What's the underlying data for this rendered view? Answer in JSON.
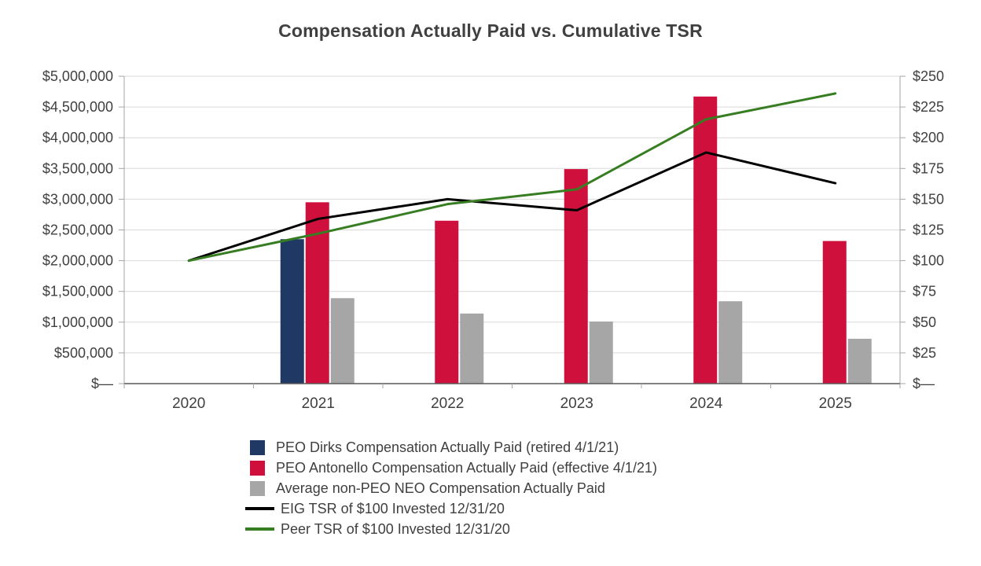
{
  "title": "Compensation Actually Paid vs. Cumulative TSR",
  "colors": {
    "navy": "#1f3864",
    "red": "#d0103c",
    "gray": "#a6a6a6",
    "black": "#000000",
    "green": "#377d22",
    "grid": "#d9d9d9",
    "axis_side": "#a6a6a6",
    "axis_bottom": "#595959",
    "text": "#404040"
  },
  "chart_data": {
    "type": "combo-bar-line",
    "title": "Compensation Actually Paid vs. Cumulative TSR",
    "categories": [
      "2020",
      "2021",
      "2022",
      "2023",
      "2024",
      "2025"
    ],
    "bar_series": [
      {
        "name": "PEO Dirks Compensation Actually Paid (retired 4/1/21)",
        "color_key": "navy",
        "axis": "left",
        "values": [
          null,
          2350000,
          null,
          null,
          null,
          null
        ]
      },
      {
        "name": "PEO Antonello Compensation Actually Paid (effective 4/1/21)",
        "color_key": "red",
        "axis": "left",
        "values": [
          null,
          2950000,
          2650000,
          3490000,
          4670000,
          2320000
        ]
      },
      {
        "name": "Average non-PEO NEO Compensation Actually Paid",
        "color_key": "gray",
        "axis": "left",
        "values": [
          null,
          1390000,
          1140000,
          1010000,
          1340000,
          730000
        ]
      }
    ],
    "line_series": [
      {
        "name": "EIG TSR of $100 Invested 12/31/20",
        "color_key": "black",
        "axis": "right",
        "values": [
          100,
          134,
          150,
          141,
          188,
          163
        ]
      },
      {
        "name": "Peer TSR of $100 Invested 12/31/20",
        "color_key": "green",
        "axis": "right",
        "values": [
          100,
          122,
          146,
          158,
          215,
          236
        ]
      }
    ],
    "left_axis": {
      "min": 0,
      "max": 5000000,
      "step": 500000,
      "tick_labels": [
        "$—",
        "$500,000",
        "$1,000,000",
        "$1,500,000",
        "$2,000,000",
        "$2,500,000",
        "$3,000,000",
        "$3,500,000",
        "$4,000,000",
        "$4,500,000",
        "$5,000,000"
      ]
    },
    "right_axis": {
      "min": 0,
      "max": 250,
      "step": 25,
      "tick_labels": [
        "$—",
        "$25",
        "$50",
        "$75",
        "$100",
        "$125",
        "$150",
        "$175",
        "$200",
        "$225",
        "$250"
      ]
    },
    "grid": true,
    "legend_position": "bottom-left"
  }
}
